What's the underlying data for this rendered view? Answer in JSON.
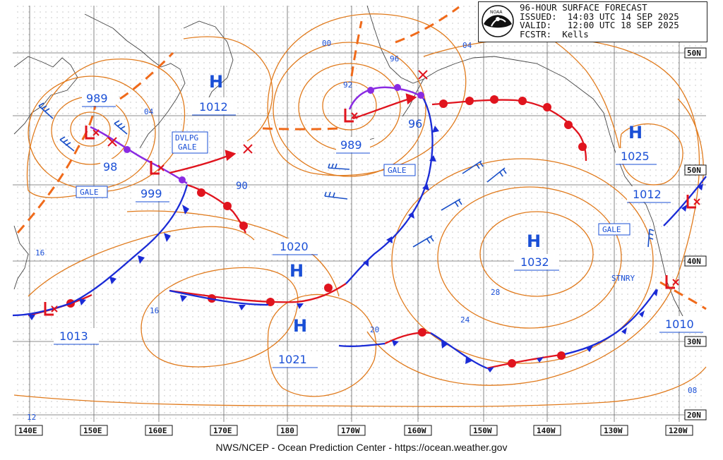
{
  "header": {
    "line1": "96-HOUR SURFACE FORECAST",
    "line2": "ISSUED:  14:03 UTC 14 SEP 2025",
    "line3": "VALID:   12:00 UTC 18 SEP 2025",
    "line4": "FCSTR:  Kells",
    "logo_text": "NOAA"
  },
  "footer": "NWS/NCEP - Ocean Prediction Center - https://ocean.weather.gov",
  "colors": {
    "isobar": "#e07a1c",
    "cold_front": "#1a2bd6",
    "warm_front": "#e0141e",
    "occluded": "#8a2be2",
    "trough": "#f06a1a",
    "pressure_letter": "#1a4fd6",
    "grid": "#555555"
  },
  "lon_labels": [
    "140E",
    "150E",
    "160E",
    "170E",
    "180",
    "170W",
    "160W",
    "150W",
    "140W",
    "130W",
    "120W"
  ],
  "lat_labels": [
    "50N",
    "50N",
    "40N",
    "30N",
    "20N"
  ],
  "pressure_centers": [
    {
      "type": "H",
      "value": "1012"
    },
    {
      "type": "H",
      "value": "1025"
    },
    {
      "type": "H",
      "value": "1032"
    },
    {
      "type": "H",
      "value": "1020"
    },
    {
      "type": "H",
      "value": "1021"
    },
    {
      "type": "L",
      "value": "989"
    },
    {
      "type": "L",
      "value": "98"
    },
    {
      "type": "L",
      "value": "999"
    },
    {
      "type": "L",
      "value": "989"
    },
    {
      "type": "L",
      "value": "1013"
    },
    {
      "type": "L",
      "value": "1012"
    },
    {
      "type": "L",
      "value": "1010"
    }
  ],
  "isobar_labels": [
    "04",
    "00",
    "92",
    "96",
    "04",
    "90",
    "16",
    "20",
    "24",
    "28",
    "08",
    "12",
    "16"
  ],
  "warnings": [
    "GALE",
    "DVLPG",
    "GALE",
    "GALE",
    "GALE",
    "STNRY"
  ]
}
